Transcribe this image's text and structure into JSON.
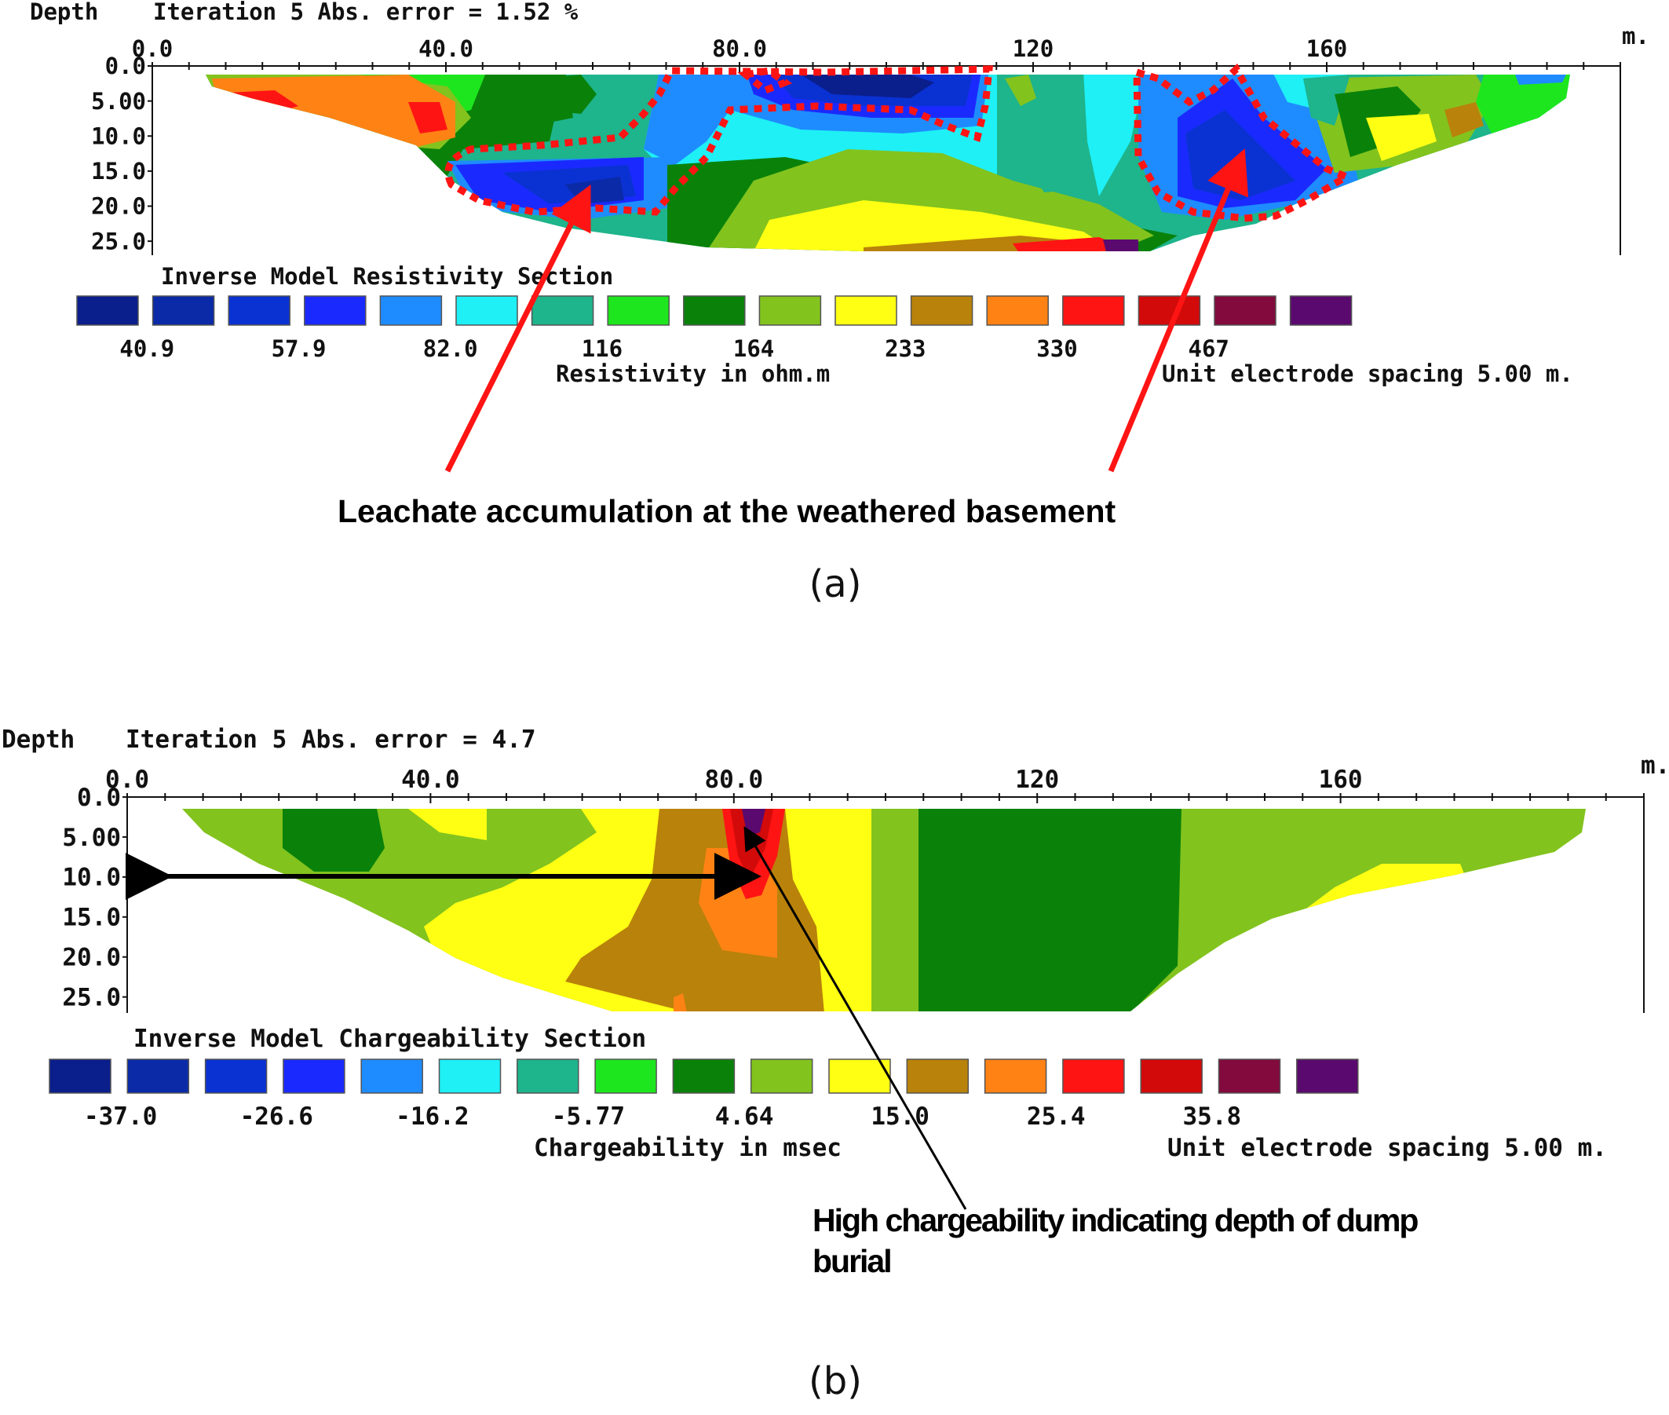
{
  "chart_data": [
    {
      "type": "heatmap",
      "depth_label": "Depth",
      "title": "Iteration 5 Abs. error = 1.52 %",
      "section_title": "Inverse Model Resistivity Section",
      "x_unit": "m.",
      "x_ticks": [
        "0.0",
        "40.0",
        "80.0",
        "120",
        "160"
      ],
      "x_tick_values": [
        0,
        40,
        80,
        120,
        160
      ],
      "xlim": [
        0,
        200
      ],
      "y_ticks": [
        "0.0",
        "5.00",
        "10.0",
        "15.0",
        "20.0",
        "25.0"
      ],
      "y_tick_values": [
        0,
        5,
        10,
        15,
        20,
        25
      ],
      "ylim": [
        0,
        27
      ],
      "colorbar_colors": [
        "#0a1e8c",
        "#0a2aa8",
        "#0a32d2",
        "#1a2aff",
        "#1e8cff",
        "#1ef0f5",
        "#1eb48c",
        "#1ee61e",
        "#0a820a",
        "#82c31e",
        "#ffff14",
        "#b9820a",
        "#ff8214",
        "#ff1414",
        "#d20a0a",
        "#820a3c",
        "#5a0a6e"
      ],
      "colorbar_labels": [
        "40.9",
        "57.9",
        "82.0",
        "116",
        "164",
        "233",
        "330",
        "467"
      ],
      "colorbar_title": "Resistivity in ohm.m",
      "spacing_note": "Unit electrode spacing 5.00 m.",
      "annotation": "Leachate accumulation at the weathered basement",
      "annotation_color": "#ff1414",
      "subcaption": "(a)"
    },
    {
      "type": "heatmap",
      "depth_label": "Depth",
      "title": "Iteration 5 Abs. error = 4.7",
      "section_title": "Inverse Model Chargeability Section",
      "x_unit": "m.",
      "x_ticks": [
        "0.0",
        "40.0",
        "80.0",
        "120",
        "160"
      ],
      "x_tick_values": [
        0,
        40,
        80,
        120,
        160
      ],
      "xlim": [
        0,
        200
      ],
      "y_ticks": [
        "0.0",
        "5.00",
        "10.0",
        "15.0",
        "20.0",
        "25.0"
      ],
      "y_tick_values": [
        0,
        5,
        10,
        15,
        20,
        25
      ],
      "ylim": [
        0,
        27
      ],
      "colorbar_colors": [
        "#0a1e8c",
        "#0a2aa8",
        "#0a32d2",
        "#1a2aff",
        "#1e8cff",
        "#1ef0f5",
        "#1eb48c",
        "#1ee61e",
        "#0a820a",
        "#82c31e",
        "#ffff14",
        "#b9820a",
        "#ff8214",
        "#ff1414",
        "#d20a0a",
        "#820a3c",
        "#5a0a6e"
      ],
      "colorbar_labels": [
        "-37.0",
        "-26.6",
        "-16.2",
        "-5.77",
        "4.64",
        "15.0",
        "25.4",
        "35.8"
      ],
      "colorbar_title": "Chargeability in msec",
      "spacing_note": "Unit electrode spacing 5.00 m.",
      "annotation_lines": [
        "High chargeability indicating depth of dump",
        "burial"
      ],
      "subcaption": "(b)"
    }
  ]
}
